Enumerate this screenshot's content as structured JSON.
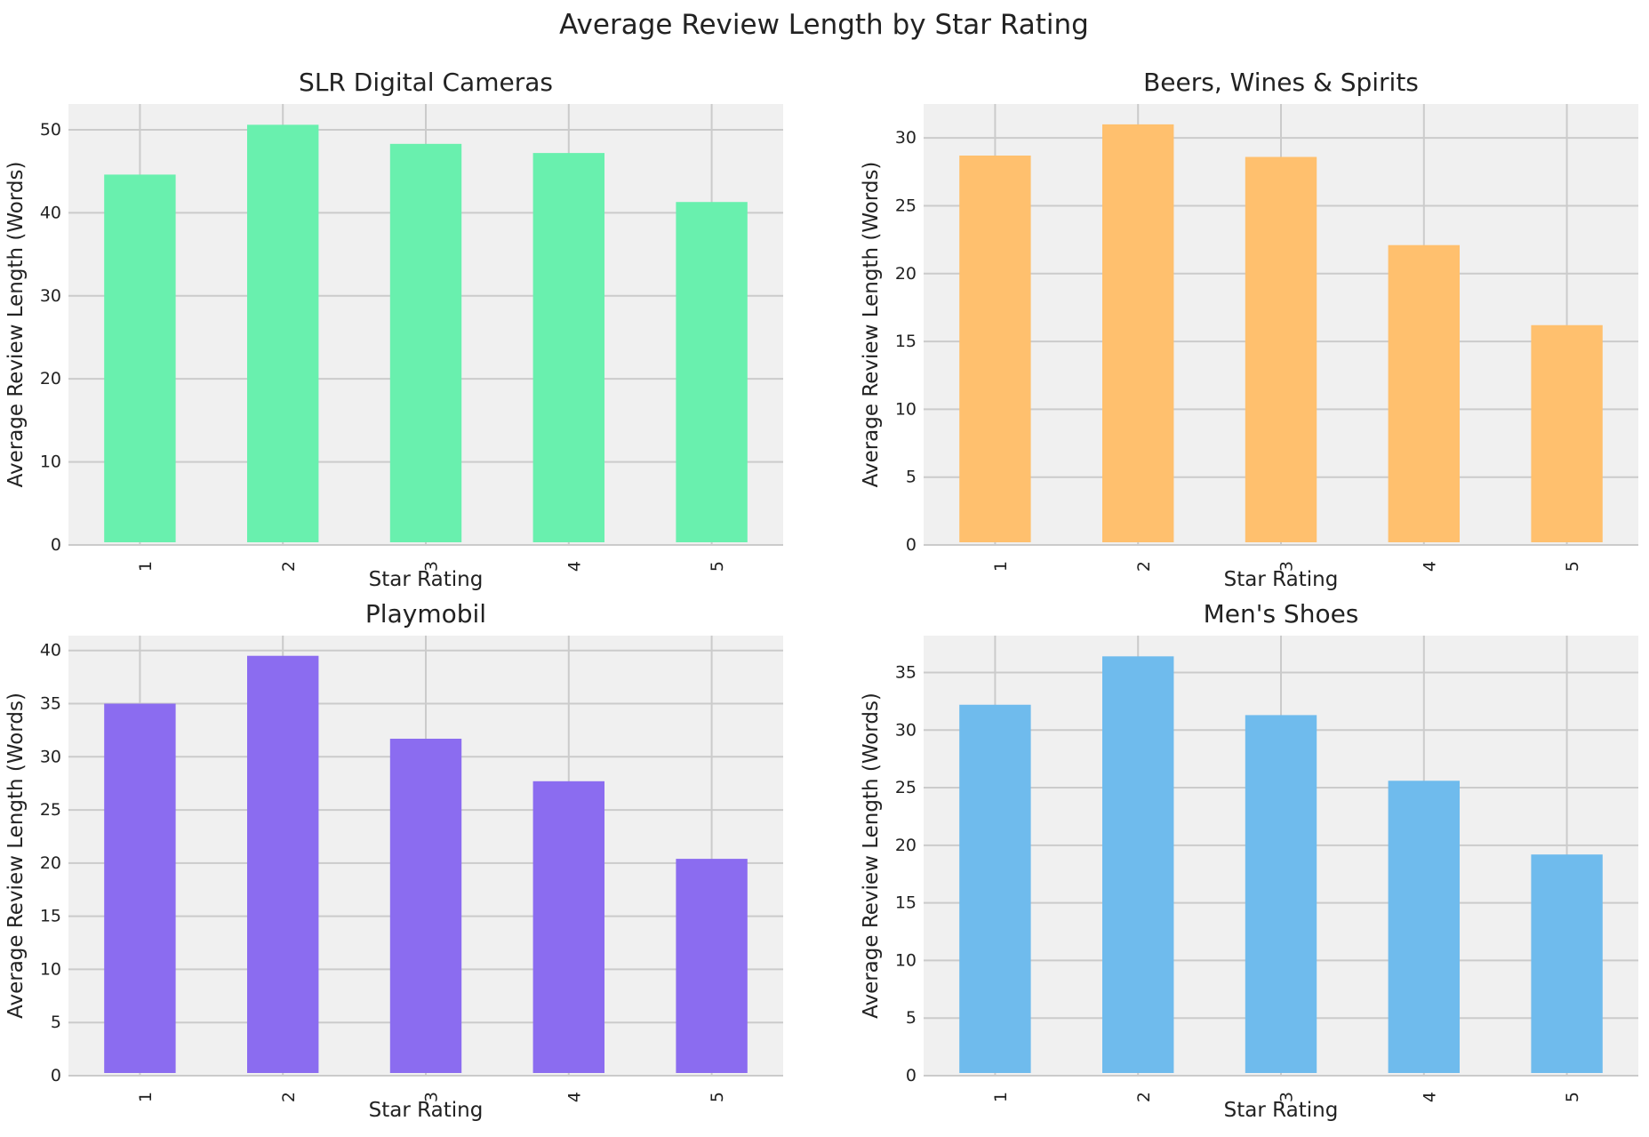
{
  "suptitle": "Average Review Length by Star Rating",
  "chart_data": [
    {
      "type": "bar",
      "title": "SLR Digital Cameras",
      "xlabel": "Star Rating",
      "ylabel": "Average Review Length (Words)",
      "categories": [
        "1",
        "2",
        "3",
        "4",
        "5"
      ],
      "values": [
        44.6,
        50.6,
        48.3,
        47.2,
        41.3
      ],
      "ylim": [
        0,
        53.1
      ],
      "yticks": [
        0,
        10,
        20,
        30,
        40,
        50
      ],
      "color": "#69f0ae",
      "grid": true
    },
    {
      "type": "bar",
      "title": "Beers, Wines & Spirits",
      "xlabel": "Star Rating",
      "ylabel": "Average Review Length (Words)",
      "categories": [
        "1",
        "2",
        "3",
        "4",
        "5"
      ],
      "values": [
        28.7,
        31.0,
        28.6,
        22.1,
        16.2
      ],
      "ylim": [
        0,
        32.5
      ],
      "yticks": [
        0,
        5,
        10,
        15,
        20,
        25,
        30
      ],
      "color": "#ffc06e",
      "grid": true
    },
    {
      "type": "bar",
      "title": "Playmobil",
      "xlabel": "Star Rating",
      "ylabel": "Average Review Length (Words)",
      "categories": [
        "1",
        "2",
        "3",
        "4",
        "5"
      ],
      "values": [
        35.0,
        39.5,
        31.7,
        27.7,
        20.4
      ],
      "ylim": [
        0,
        41.4
      ],
      "yticks": [
        0,
        5,
        10,
        15,
        20,
        25,
        30,
        35,
        40
      ],
      "color": "#8b6cf0",
      "grid": true
    },
    {
      "type": "bar",
      "title": "Men's Shoes",
      "xlabel": "Star Rating",
      "ylabel": "Average Review Length (Words)",
      "categories": [
        "1",
        "2",
        "3",
        "4",
        "5"
      ],
      "values": [
        32.2,
        36.4,
        31.3,
        25.6,
        19.2
      ],
      "ylim": [
        0,
        38.2
      ],
      "yticks": [
        0,
        5,
        10,
        15,
        20,
        25,
        30,
        35
      ],
      "color": "#6fbbed",
      "grid": true
    }
  ]
}
